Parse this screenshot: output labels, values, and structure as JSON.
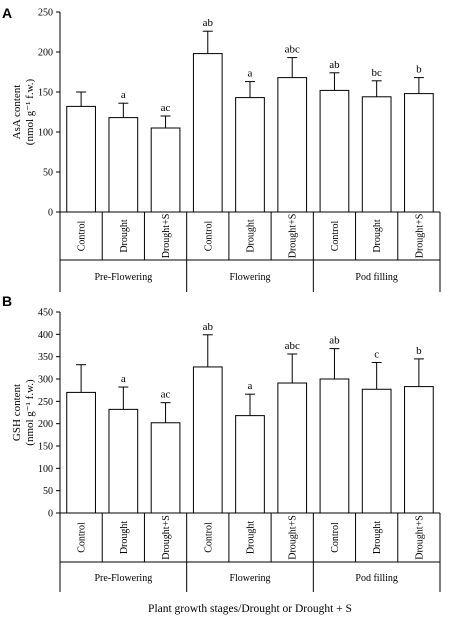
{
  "chart_data": [
    {
      "type": "bar",
      "panel_label": "A",
      "ylabel": "AsA content",
      "ylabel_unit": "(nmol g⁻¹ f.w.)",
      "ylim": [
        0,
        250
      ],
      "yticks": [
        0,
        50,
        100,
        150,
        200,
        250
      ],
      "categories": [
        "Control",
        "Drought",
        "Drought+S",
        "Control",
        "Drought",
        "Drought+S",
        "Control",
        "Drought",
        "Drought+S"
      ],
      "groups": [
        {
          "label": "Pre-Flowering",
          "span": [
            0,
            2
          ]
        },
        {
          "label": "Flowering",
          "span": [
            3,
            5
          ]
        },
        {
          "label": "Pod filling",
          "span": [
            6,
            8
          ]
        }
      ],
      "values": [
        132,
        118,
        105,
        198,
        143,
        168,
        152,
        144,
        148
      ],
      "errors": [
        18,
        18,
        15,
        28,
        20,
        25,
        22,
        20,
        20
      ],
      "annotations": [
        "",
        "a",
        "ac",
        "ab",
        "a",
        "abc",
        "ab",
        "bc",
        "b"
      ],
      "bar_color": "#ffffff",
      "grid": false
    },
    {
      "type": "bar",
      "panel_label": "B",
      "ylabel": "GSH content",
      "ylabel_unit": "(nmol g⁻¹ f.w.)",
      "xlabel": "Plant growth stages/Drought  or Drought + S",
      "ylim": [
        0,
        450
      ],
      "yticks": [
        0,
        50,
        100,
        150,
        200,
        250,
        300,
        350,
        400,
        450
      ],
      "categories": [
        "Control",
        "Drought",
        "Drought+S",
        "Control",
        "Drought",
        "Drought+S",
        "Control",
        "Drought",
        "Drought+S"
      ],
      "groups": [
        {
          "label": "Pre-Flowering",
          "span": [
            0,
            2
          ]
        },
        {
          "label": "Flowering",
          "span": [
            3,
            5
          ]
        },
        {
          "label": "Pod filling",
          "span": [
            6,
            8
          ]
        }
      ],
      "values": [
        270,
        232,
        202,
        327,
        218,
        291,
        300,
        277,
        283
      ],
      "errors": [
        62,
        50,
        45,
        72,
        48,
        65,
        68,
        60,
        62
      ],
      "annotations": [
        "",
        "a",
        "ac",
        "ab",
        "a",
        "abc",
        "ab",
        "c",
        "b"
      ],
      "bar_color": "#ffffff",
      "grid": false
    }
  ]
}
